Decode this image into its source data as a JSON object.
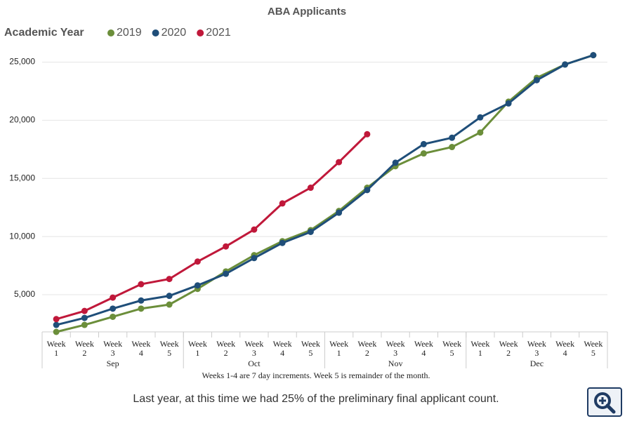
{
  "chart_data": {
    "type": "line",
    "title": "ABA Applicants",
    "legend_title": "Academic Year",
    "groups": [
      {
        "name": "Sep",
        "categories": [
          "Week 1",
          "Week 2",
          "Week 3",
          "Week 4",
          "Week 5"
        ]
      },
      {
        "name": "Oct",
        "categories": [
          "Week 1",
          "Week 2",
          "Week 3",
          "Week 4",
          "Week 5"
        ]
      },
      {
        "name": "Nov",
        "categories": [
          "Week 1",
          "Week 2",
          "Week 3",
          "Week 4",
          "Week 5"
        ]
      },
      {
        "name": "Dec",
        "categories": [
          "Week 1",
          "Week 2",
          "Week 3",
          "Week 4",
          "Week 5"
        ]
      }
    ],
    "series": [
      {
        "name": "2019",
        "color": "#6b8e3a",
        "values": [
          1800,
          2400,
          3100,
          3800,
          4150,
          5500,
          7000,
          8400,
          9600,
          10550,
          12200,
          14200,
          16050,
          17150,
          17700,
          18950,
          21600,
          23650,
          24800,
          25600
        ]
      },
      {
        "name": "2020",
        "color": "#1f4e79",
        "values": [
          2400,
          3000,
          3800,
          4500,
          4900,
          5800,
          6800,
          8150,
          9450,
          10400,
          12050,
          14000,
          16350,
          17950,
          18500,
          20250,
          21450,
          23450,
          24800,
          25600
        ]
      },
      {
        "name": "2021",
        "color": "#c0183a",
        "values": [
          2900,
          3600,
          4750,
          5900,
          6350,
          7850,
          9150,
          10600,
          12850,
          14200,
          16400,
          18800,
          null,
          null,
          null,
          null,
          null,
          null,
          null,
          null
        ]
      }
    ],
    "ylim": [
      1800,
      26000
    ],
    "yticks": [
      {
        "value": 5000,
        "label": "5,000"
      },
      {
        "value": 10000,
        "label": "10,000"
      },
      {
        "value": 15000,
        "label": "15,000"
      },
      {
        "value": 20000,
        "label": "20,000"
      },
      {
        "value": 25000,
        "label": "25,000"
      }
    ],
    "grid": true,
    "footnote": "Weeks 1-4 are 7 day increments. Week 5 is remainder of the month.",
    "caption": "Last year, at this time we had 25% of the preliminary final applicant count."
  }
}
